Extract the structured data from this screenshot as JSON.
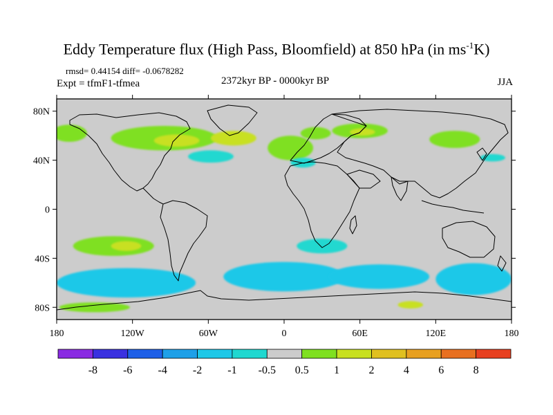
{
  "title": {
    "main": "Eddy Temperature flux (High Pass, Bloomfield) at 850 hPa (in ms",
    "sup": "-1",
    "tail": "K)"
  },
  "stats": "rmsd= 0.44154 diff= -0.0678282",
  "experiment": "Expt = tfmF1-tfmea",
  "period": "2372kyr BP - 0000kyr BP",
  "season": "JJA",
  "map": {
    "lon_range": [
      -180,
      180
    ],
    "lat_range": [
      -90,
      90
    ],
    "background_color": "#cccccc",
    "lat_ticks": [
      {
        "value": 80,
        "label": "80N"
      },
      {
        "value": 40,
        "label": "40N"
      },
      {
        "value": 0,
        "label": "0"
      },
      {
        "value": -40,
        "label": "40S"
      },
      {
        "value": -80,
        "label": "80S"
      }
    ],
    "lon_ticks": [
      {
        "value": -180,
        "label": "180"
      },
      {
        "value": -120,
        "label": "120W"
      },
      {
        "value": -60,
        "label": "60W"
      },
      {
        "value": 0,
        "label": "0"
      },
      {
        "value": 60,
        "label": "60E"
      },
      {
        "value": 120,
        "label": "120E"
      },
      {
        "value": 180,
        "label": "180"
      }
    ],
    "anomalies": [
      {
        "name": "alaska-positive",
        "color": "#7fe020",
        "lon": -170,
        "lat": 62,
        "rlon": 14,
        "rlat": 7
      },
      {
        "name": "n-america-positive",
        "color": "#7fe020",
        "lon": -95,
        "lat": 58,
        "rlon": 42,
        "rlat": 10
      },
      {
        "name": "hudson-positive-core",
        "color": "#c8e020",
        "lon": -85,
        "lat": 56,
        "rlon": 18,
        "rlat": 5
      },
      {
        "name": "n-atlantic-positive",
        "color": "#c8e020",
        "lon": -40,
        "lat": 58,
        "rlon": 18,
        "rlat": 6
      },
      {
        "name": "europe-positive",
        "color": "#7fe020",
        "lon": 5,
        "lat": 50,
        "rlon": 18,
        "rlat": 10
      },
      {
        "name": "scandinavia-positive",
        "color": "#7fe020",
        "lon": 25,
        "lat": 62,
        "rlon": 12,
        "rlat": 5
      },
      {
        "name": "siberia-positive",
        "color": "#7fe020",
        "lon": 60,
        "lat": 64,
        "rlon": 22,
        "rlat": 6
      },
      {
        "name": "siberia-positive-core",
        "color": "#c8e020",
        "lon": 62,
        "lat": 63,
        "rlon": 10,
        "rlat": 3
      },
      {
        "name": "e-asia-positive",
        "color": "#7fe020",
        "lon": 135,
        "lat": 57,
        "rlon": 20,
        "rlat": 7
      },
      {
        "name": "w-atlantic-negative",
        "color": "#20d8d0",
        "lon": -58,
        "lat": 43,
        "rlon": 18,
        "rlat": 5
      },
      {
        "name": "mediterranean-negative",
        "color": "#20d8d0",
        "lon": 15,
        "lat": 38,
        "rlon": 10,
        "rlat": 4
      },
      {
        "name": "nw-pacific-negative",
        "color": "#20d8d0",
        "lon": 165,
        "lat": 42,
        "rlon": 10,
        "rlat": 3
      },
      {
        "name": "s-pacific-positive",
        "color": "#7fe020",
        "lon": -135,
        "lat": -30,
        "rlon": 32,
        "rlat": 8
      },
      {
        "name": "s-pacific-positive-core",
        "color": "#c8e020",
        "lon": -125,
        "lat": -30,
        "rlon": 12,
        "rlat": 4
      },
      {
        "name": "s-africa-negative",
        "color": "#20d8d0",
        "lon": 30,
        "lat": -30,
        "rlon": 20,
        "rlat": 6
      },
      {
        "name": "southern-ocean-negative-w",
        "color": "#1ec8e8",
        "lon": -125,
        "lat": -60,
        "rlon": 55,
        "rlat": 12
      },
      {
        "name": "southern-ocean-negative-atl",
        "color": "#1ec8e8",
        "lon": 0,
        "lat": -55,
        "rlon": 48,
        "rlat": 12
      },
      {
        "name": "southern-ocean-negative-ind",
        "color": "#1ec8e8",
        "lon": 75,
        "lat": -55,
        "rlon": 40,
        "rlat": 10
      },
      {
        "name": "southern-ocean-negative-e",
        "color": "#1ec8e8",
        "lon": 150,
        "lat": -57,
        "rlon": 30,
        "rlat": 13
      },
      {
        "name": "antarctic-positive",
        "color": "#7fe020",
        "lon": -150,
        "lat": -80,
        "rlon": 28,
        "rlat": 4
      },
      {
        "name": "antarctic-positive-e",
        "color": "#c8e020",
        "lon": 100,
        "lat": -78,
        "rlon": 10,
        "rlat": 3
      }
    ]
  },
  "colorbar": {
    "colors": [
      "#8a2be2",
      "#3a30e0",
      "#1e60e8",
      "#1ea0e8",
      "#1ec8e8",
      "#20d8d0",
      "#cccccc",
      "#7fe020",
      "#c8e020",
      "#e0c020",
      "#e8a020",
      "#e87020",
      "#e84020"
    ],
    "labels": [
      "-8",
      "-6",
      "-4",
      "-2",
      "-1",
      "-0.5",
      "0.5",
      "1",
      "2",
      "4",
      "6",
      "8"
    ]
  }
}
